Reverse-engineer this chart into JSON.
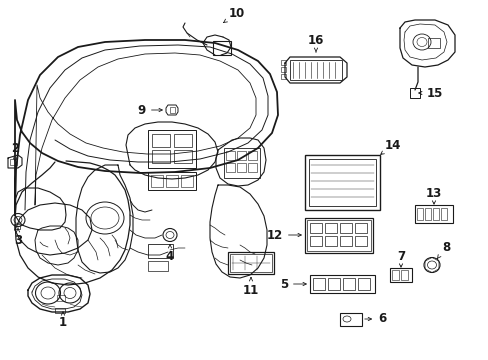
{
  "bg_color": "#ffffff",
  "line_color": "#1a1a1a",
  "fig_width": 4.89,
  "fig_height": 3.6,
  "dpi": 100,
  "components": {
    "label_fontsize": 8.5,
    "arrow_lw": 0.7
  }
}
